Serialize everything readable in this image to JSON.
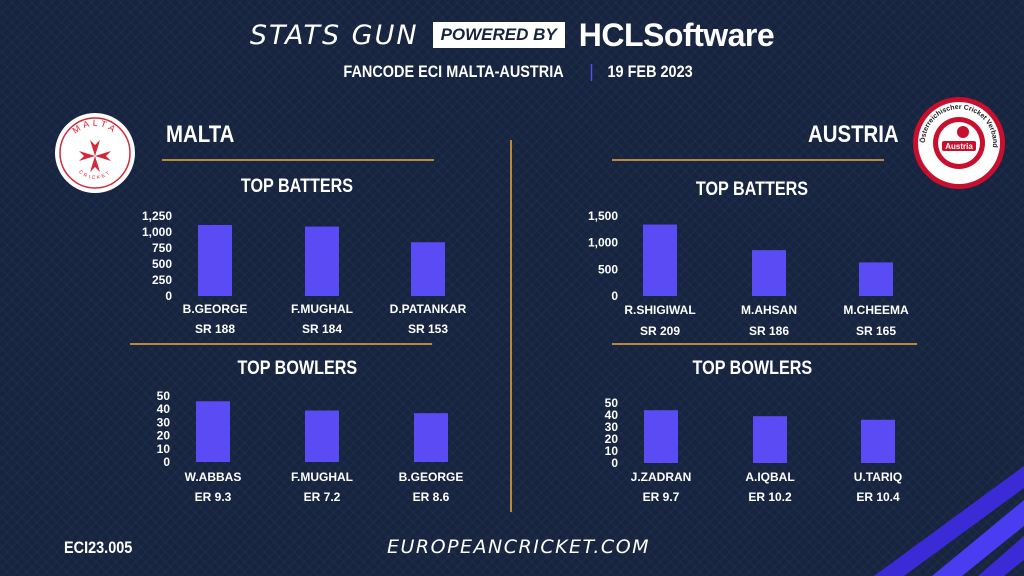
{
  "header": {
    "brand": "STATS GUN",
    "powered_by": "POWERED BY",
    "sponsor": "HCLSoftware",
    "event": "FANCODE ECI MALTA-AUSTRIA",
    "date": "19 FEB 2023"
  },
  "teams": {
    "left": {
      "name": "MALTA",
      "logo_text": "MALTA",
      "logo_subtext": "CRICKET"
    },
    "right": {
      "name": "AUSTRIA",
      "logo_text": "Österreichischer Cricket Verband",
      "logo_badge": "Austria"
    }
  },
  "sections": {
    "batters_title": "TOP BATTERS",
    "bowlers_title": "TOP BOWLERS"
  },
  "footer": {
    "match_id": "ECI23.005",
    "website": "EUROPEANCRICKET.COM"
  },
  "colors": {
    "bar": "#5b4bf5",
    "accent": "#b8893a",
    "background": "#16243f"
  },
  "chart_data": [
    {
      "id": "malta-batters",
      "type": "bar",
      "title": "TOP BATTERS",
      "categories": [
        "B.GEORGE",
        "F.MUGHAL",
        "D.PATANKAR"
      ],
      "values": [
        1110,
        1085,
        840
      ],
      "annotations": [
        "SR 188",
        "SR 184",
        "SR 153"
      ],
      "yticks": [
        "0",
        "250",
        "500",
        "750",
        "1,000",
        "1,250"
      ],
      "ylim": [
        0,
        1250
      ],
      "grid": false
    },
    {
      "id": "austria-batters",
      "type": "bar",
      "title": "TOP BATTERS",
      "categories": [
        "R.SHIGIWAL",
        "M.AHSAN",
        "M.CHEEMA"
      ],
      "values": [
        1340,
        860,
        630
      ],
      "annotations": [
        "SR 209",
        "SR 186",
        "SR 165"
      ],
      "yticks": [
        "0",
        "500",
        "1,000",
        "1,500"
      ],
      "ylim": [
        0,
        1500
      ],
      "grid": false
    },
    {
      "id": "malta-bowlers",
      "type": "bar",
      "title": "TOP BOWLERS",
      "categories": [
        "W.ABBAS",
        "F.MUGHAL",
        "B.GEORGE"
      ],
      "values": [
        46,
        39,
        37
      ],
      "annotations": [
        "ER 9.3",
        "ER 7.2",
        "ER 8.6"
      ],
      "yticks": [
        "0",
        "10",
        "20",
        "30",
        "40",
        "50"
      ],
      "ylim": [
        0,
        50
      ],
      "grid": false
    },
    {
      "id": "austria-bowlers",
      "type": "bar",
      "title": "TOP BOWLERS",
      "categories": [
        "J.ZADRAN",
        "A.IQBAL",
        "U.TARIQ"
      ],
      "values": [
        44,
        39,
        36
      ],
      "annotations": [
        "ER 9.7",
        "ER 10.2",
        "ER 10.4"
      ],
      "yticks": [
        "0",
        "10",
        "20",
        "30",
        "40",
        "50"
      ],
      "ylim": [
        0,
        50
      ],
      "grid": false
    }
  ]
}
